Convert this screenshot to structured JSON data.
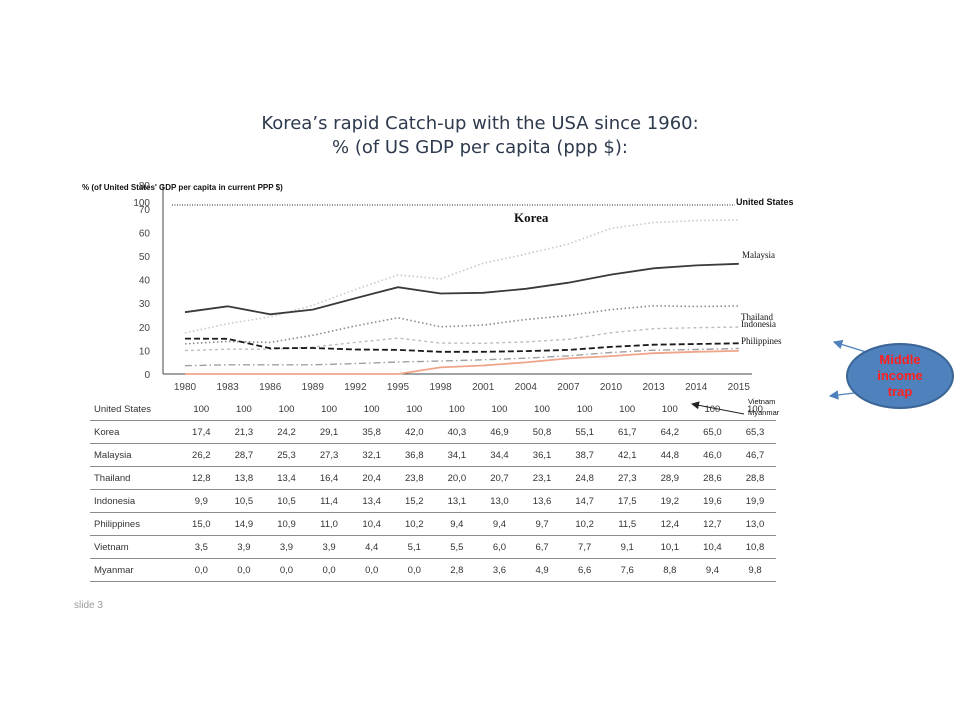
{
  "title": {
    "line1": "Korea’s rapid Catch-up with the USA since 1960:",
    "line2": "% (of  US GDP per capita (ppp $):"
  },
  "callout": {
    "line1": "Middle",
    "line2": "income",
    "line3": "trap"
  },
  "slide_label": "slide 3",
  "chart_data": {
    "type": "line",
    "ylabel": "% (of   United States' GDP per capita in current PPP $)",
    "ylim": [
      0,
      80
    ],
    "y_ticks": [
      0,
      10,
      20,
      30,
      40,
      50,
      60,
      70,
      80
    ],
    "x": [
      "1980",
      "1983",
      "1986",
      "1989",
      "1992",
      "1995",
      "1998",
      "2001",
      "2004",
      "2007",
      "2010",
      "2013",
      "2014",
      "2015"
    ],
    "annotations": {
      "top_inside_label": "Korea",
      "top_tick_overlay": "100"
    },
    "series": [
      {
        "name": "United States",
        "label": "United States",
        "color": "#222222",
        "style": "dotted-dense",
        "values": [
          "100",
          "100",
          "100",
          "100",
          "100",
          "100",
          "100",
          "100",
          "100",
          "100",
          "100",
          "100",
          "100",
          "100"
        ]
      },
      {
        "name": "Korea",
        "label": "",
        "color": "#c8c8c8",
        "style": "dotted",
        "values": [
          "17,4",
          "21,3",
          "24,2",
          "29,1",
          "35,8",
          "42,0",
          "40,3",
          "46,9",
          "50,8",
          "55,1",
          "61,7",
          "64,2",
          "65,0",
          "65,3"
        ]
      },
      {
        "name": "Malaysia",
        "label": "Malaysia",
        "color": "#3a3a3a",
        "style": "solid",
        "values": [
          "26,2",
          "28,7",
          "25,3",
          "27,3",
          "32,1",
          "36,8",
          "34,1",
          "34,4",
          "36,1",
          "38,7",
          "42,1",
          "44,8",
          "46,0",
          "46,7"
        ]
      },
      {
        "name": "Thailand",
        "label": "Thailand",
        "color": "#8a8a8a",
        "style": "dotted",
        "values": [
          "12,8",
          "13,8",
          "13,4",
          "16,4",
          "20,4",
          "23,8",
          "20,0",
          "20,7",
          "23,1",
          "24,8",
          "27,3",
          "28,9",
          "28,6",
          "28,8"
        ]
      },
      {
        "name": "Indonesia",
        "label": "Indonesia",
        "color": "#bdbdbd",
        "style": "dashed-small",
        "values": [
          "9,9",
          "10,5",
          "10,5",
          "11,4",
          "13,4",
          "15,2",
          "13,1",
          "13,0",
          "13,6",
          "14,7",
          "17,5",
          "19,2",
          "19,6",
          "19,9"
        ]
      },
      {
        "name": "Philippines",
        "label": "Philippines",
        "color": "#1a1a1a",
        "style": "dashed",
        "values": [
          "15,0",
          "14,9",
          "10,9",
          "11,0",
          "10,4",
          "10,2",
          "9,4",
          "9,4",
          "9,7",
          "10,2",
          "11,5",
          "12,4",
          "12,7",
          "13,0"
        ]
      },
      {
        "name": "Vietnam",
        "label": "Vietnam",
        "color": "#a0a0a0",
        "style": "dashdot",
        "values": [
          "3,5",
          "3,9",
          "3,9",
          "3,9",
          "4,4",
          "5,1",
          "5,5",
          "6,0",
          "6,7",
          "7,7",
          "9,1",
          "10,1",
          "10,4",
          "10,8"
        ]
      },
      {
        "name": "Myanmar",
        "label": "Myanmar",
        "color": "#f0a58a",
        "style": "solid",
        "values": [
          "0,0",
          "0,0",
          "0,0",
          "0,0",
          "0,0",
          "0,0",
          "2,8",
          "3,6",
          "4,9",
          "6,6",
          "7,6",
          "8,8",
          "9,4",
          "9,8"
        ]
      }
    ]
  }
}
